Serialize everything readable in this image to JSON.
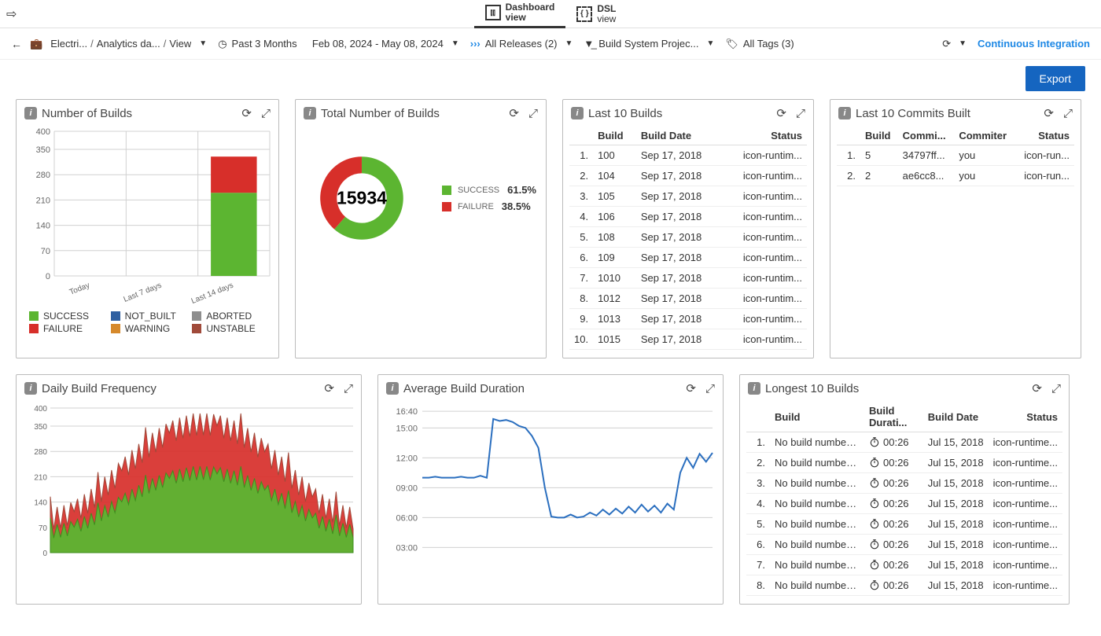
{
  "tabs": {
    "dashboard_top": "Dashboard",
    "dashboard_bottom": "view",
    "dsl_top": "DSL",
    "dsl_bottom": "view"
  },
  "breadcrumb": {
    "c1": "Electri...",
    "c2": "Analytics da...",
    "c3": "View"
  },
  "filters": {
    "past": "Past 3 Months",
    "date_range": "Feb 08, 2024 - May 08, 2024",
    "releases": "All Releases (2)",
    "project": "Build System Projec...",
    "tags": "All Tags (3)"
  },
  "ci_label": "Continuous Integration",
  "export_label": "Export",
  "colors": {
    "success": "#5cb531",
    "failure": "#d72f2a",
    "not_built": "#2f5fa0",
    "aborted": "#8e8e8e",
    "warning": "#d6892b",
    "unstable": "#a04a3a",
    "line_blue": "#2b6fbf",
    "grid": "#d0d0d0",
    "axis_text": "#666"
  },
  "number_of_builds": {
    "title": "Number of Builds",
    "type": "stacked-bar",
    "y": {
      "min": 0,
      "max": 400,
      "ticks": [
        0,
        70,
        140,
        210,
        280,
        350,
        400
      ]
    },
    "x_labels": [
      "Today",
      "Last 7 days",
      "Last 14 days"
    ],
    "series": [
      {
        "name": "SUCCESS",
        "values": [
          0,
          0,
          230
        ]
      },
      {
        "name": "FAILURE",
        "values": [
          0,
          0,
          100
        ]
      }
    ],
    "legend": [
      "SUCCESS",
      "NOT_BUILT",
      "ABORTED",
      "FAILURE",
      "WARNING",
      "UNSTABLE"
    ]
  },
  "total_builds": {
    "title": "Total Number of Builds",
    "type": "donut",
    "total": "15934",
    "slices": [
      {
        "label": "SUCCESS",
        "pct": 61.5
      },
      {
        "label": "FAILURE",
        "pct": 38.5
      }
    ]
  },
  "last10_builds": {
    "title": "Last 10 Builds",
    "columns": [
      "Build",
      "Build Date",
      "Status"
    ],
    "rows": [
      [
        "100",
        "Sep 17, 2018",
        "icon-runtim..."
      ],
      [
        "104",
        "Sep 17, 2018",
        "icon-runtim..."
      ],
      [
        "105",
        "Sep 17, 2018",
        "icon-runtim..."
      ],
      [
        "106",
        "Sep 17, 2018",
        "icon-runtim..."
      ],
      [
        "108",
        "Sep 17, 2018",
        "icon-runtim..."
      ],
      [
        "109",
        "Sep 17, 2018",
        "icon-runtim..."
      ],
      [
        "1010",
        "Sep 17, 2018",
        "icon-runtim..."
      ],
      [
        "1012",
        "Sep 17, 2018",
        "icon-runtim..."
      ],
      [
        "1013",
        "Sep 17, 2018",
        "icon-runtim..."
      ],
      [
        "1015",
        "Sep 17, 2018",
        "icon-runtim..."
      ]
    ]
  },
  "last10_commits": {
    "title": "Last 10 Commits Built",
    "columns": [
      "Build",
      "Commi...",
      "Commiter",
      "Status"
    ],
    "rows": [
      [
        "5",
        "34797ff...",
        "you",
        "icon-run..."
      ],
      [
        "2",
        "ae6cc8...",
        "you",
        "icon-run..."
      ]
    ]
  },
  "daily_freq": {
    "title": "Daily Build Frequency",
    "type": "stacked-area",
    "y": {
      "min": 0,
      "max": 400,
      "ticks": [
        0,
        70,
        140,
        210,
        280,
        350,
        400
      ]
    },
    "n_points": 90,
    "amplitude_pattern": "two_ramps",
    "success_ratio": 0.62
  },
  "avg_duration": {
    "title": "Average Build Duration",
    "type": "line",
    "y_labels": [
      "16:40",
      "15:00",
      "12:00",
      "09:00",
      "06:00",
      "03:00"
    ],
    "y_values": [
      16.67,
      15,
      12,
      9,
      6,
      3
    ],
    "y_range": [
      2,
      17
    ],
    "series": [
      10,
      10,
      10.1,
      10,
      10,
      10,
      10.1,
      10,
      10,
      10.2,
      10,
      15.9,
      15.7,
      15.8,
      15.6,
      15.2,
      15.0,
      14.2,
      13.0,
      9.0,
      6.1,
      6.0,
      6.0,
      6.3,
      6.0,
      6.1,
      6.5,
      6.2,
      6.8,
      6.3,
      6.9,
      6.4,
      7.1,
      6.5,
      7.3,
      6.6,
      7.2,
      6.5,
      7.4,
      6.8,
      10.5,
      12.0,
      11.0,
      12.4,
      11.6,
      12.5
    ]
  },
  "longest10": {
    "title": "Longest 10 Builds",
    "columns": [
      "Build",
      "Build Durati...",
      "Build Date",
      "Status"
    ],
    "rows": [
      [
        "No build number ...",
        "00:26",
        "Jul 15, 2018",
        "icon-runtime..."
      ],
      [
        "No build number ...",
        "00:26",
        "Jul 15, 2018",
        "icon-runtime..."
      ],
      [
        "No build number ...",
        "00:26",
        "Jul 15, 2018",
        "icon-runtime..."
      ],
      [
        "No build number ...",
        "00:26",
        "Jul 15, 2018",
        "icon-runtime..."
      ],
      [
        "No build number ...",
        "00:26",
        "Jul 15, 2018",
        "icon-runtime..."
      ],
      [
        "No build number ...",
        "00:26",
        "Jul 15, 2018",
        "icon-runtime..."
      ],
      [
        "No build number ...",
        "00:26",
        "Jul 15, 2018",
        "icon-runtime..."
      ],
      [
        "No build number ...",
        "00:26",
        "Jul 15, 2018",
        "icon-runtime..."
      ]
    ]
  }
}
